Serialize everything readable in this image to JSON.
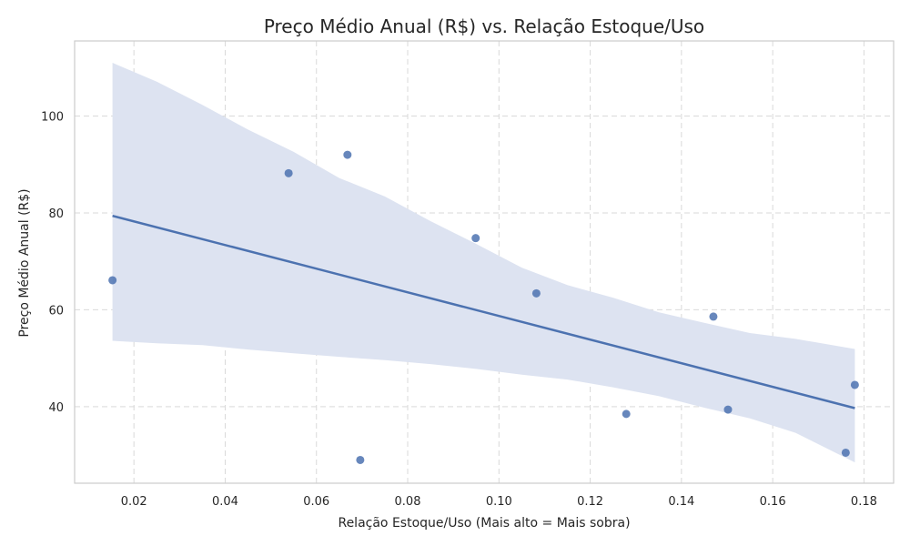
{
  "chart_data": {
    "type": "scatter",
    "title": "Preço Médio Anual (R$) vs. Relação Estoque/Uso",
    "xlabel": "Relação Estoque/Uso (Mais alto = Mais sobra)",
    "ylabel": "Preço Médio Anual (R$)",
    "xlim": [
      0.007,
      0.1865
    ],
    "ylim": [
      24.2,
      115.5
    ],
    "grid": true,
    "x_ticks": [
      0.02,
      0.04,
      0.06,
      0.08,
      0.1,
      0.12,
      0.14,
      0.16,
      0.18
    ],
    "x_tick_labels": [
      "0.02",
      "0.04",
      "0.06",
      "0.08",
      "0.10",
      "0.12",
      "0.14",
      "0.16",
      "0.18"
    ],
    "y_ticks": [
      40,
      60,
      80,
      100
    ],
    "y_tick_labels": [
      "40",
      "60",
      "80",
      "100"
    ],
    "points": [
      {
        "x": 0.0153,
        "y": 66.1
      },
      {
        "x": 0.0539,
        "y": 88.2
      },
      {
        "x": 0.0668,
        "y": 92.0
      },
      {
        "x": 0.0696,
        "y": 29.0
      },
      {
        "x": 0.0949,
        "y": 74.8
      },
      {
        "x": 0.1082,
        "y": 63.4
      },
      {
        "x": 0.1279,
        "y": 38.5
      },
      {
        "x": 0.147,
        "y": 58.6
      },
      {
        "x": 0.1502,
        "y": 39.4
      },
      {
        "x": 0.176,
        "y": 30.5
      },
      {
        "x": 0.178,
        "y": 44.5
      }
    ],
    "regression_line": [
      {
        "x": 0.0153,
        "y": 79.4
      },
      {
        "x": 0.178,
        "y": 39.7
      }
    ],
    "confidence_band": {
      "upper": [
        {
          "x": 0.0153,
          "y": 111.0
        },
        {
          "x": 0.025,
          "y": 107.1
        },
        {
          "x": 0.035,
          "y": 102.3
        },
        {
          "x": 0.045,
          "y": 97.2
        },
        {
          "x": 0.055,
          "y": 92.6
        },
        {
          "x": 0.065,
          "y": 87.2
        },
        {
          "x": 0.075,
          "y": 83.4
        },
        {
          "x": 0.085,
          "y": 78.3
        },
        {
          "x": 0.095,
          "y": 73.6
        },
        {
          "x": 0.105,
          "y": 68.7
        },
        {
          "x": 0.115,
          "y": 65.1
        },
        {
          "x": 0.125,
          "y": 62.5
        },
        {
          "x": 0.135,
          "y": 59.5
        },
        {
          "x": 0.145,
          "y": 57.3
        },
        {
          "x": 0.155,
          "y": 55.2
        },
        {
          "x": 0.165,
          "y": 54.0
        },
        {
          "x": 0.178,
          "y": 51.9
        }
      ],
      "lower": [
        {
          "x": 0.0153,
          "y": 53.6
        },
        {
          "x": 0.025,
          "y": 53.1
        },
        {
          "x": 0.035,
          "y": 52.7
        },
        {
          "x": 0.045,
          "y": 51.8
        },
        {
          "x": 0.055,
          "y": 51.0
        },
        {
          "x": 0.065,
          "y": 50.3
        },
        {
          "x": 0.075,
          "y": 49.6
        },
        {
          "x": 0.085,
          "y": 48.8
        },
        {
          "x": 0.095,
          "y": 47.8
        },
        {
          "x": 0.105,
          "y": 46.6
        },
        {
          "x": 0.115,
          "y": 45.6
        },
        {
          "x": 0.125,
          "y": 44.0
        },
        {
          "x": 0.135,
          "y": 42.2
        },
        {
          "x": 0.145,
          "y": 39.8
        },
        {
          "x": 0.155,
          "y": 37.6
        },
        {
          "x": 0.165,
          "y": 34.6
        },
        {
          "x": 0.178,
          "y": 28.5
        }
      ]
    },
    "colors": {
      "points": "#4c72b0",
      "line": "#4c72b0",
      "band": "#dde3f1",
      "grid": "#d9d9d9",
      "frame": "#cccccc"
    }
  }
}
